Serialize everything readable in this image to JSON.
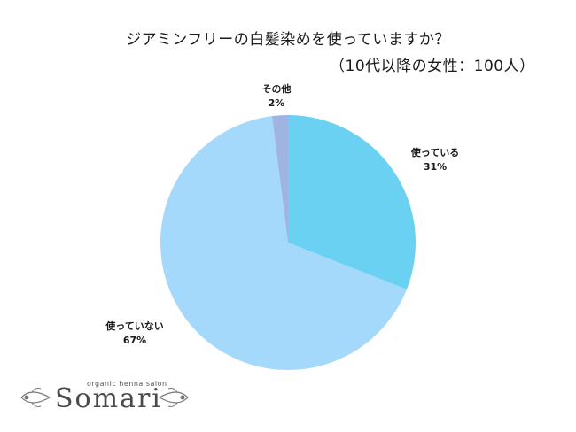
{
  "title": {
    "line1": "ジアミンフリーの白髪染めを使っていますか？",
    "line2": "（10代以降の女性：100人）"
  },
  "chart_data": {
    "type": "pie",
    "title": "ジアミンフリーの白髪染めを使っていますか？（10代以降の女性：100人）",
    "slices": [
      {
        "label": "使っている",
        "value": 31,
        "value_label": "31%",
        "color": "#6ad1f2"
      },
      {
        "label": "使っていない",
        "value": 67,
        "value_label": "67%",
        "color": "#a4d9fb"
      },
      {
        "label": "その他",
        "value": 2,
        "value_label": "2%",
        "color": "#9fb4e0"
      }
    ],
    "start": "12 o'clock",
    "direction": "clockwise",
    "legend": "none"
  },
  "logo": {
    "small_text": "organic henna salon",
    "brand": "Somari",
    "color": "#4a4a4a"
  }
}
